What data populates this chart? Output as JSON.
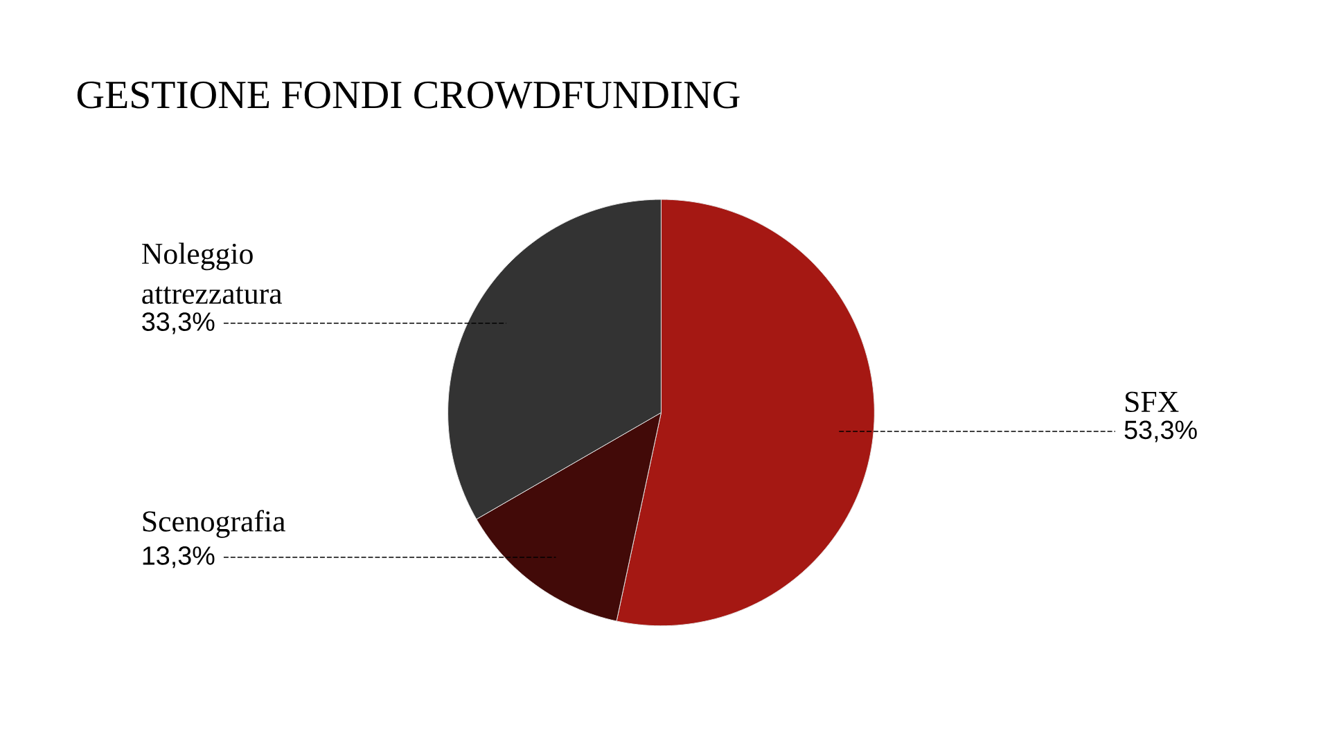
{
  "chart_data": {
    "type": "pie",
    "title": "GESTIONE FONDI CROWDFUNDING",
    "categories": [
      "SFX",
      "Scenografia",
      "Noleggio attrezzatura"
    ],
    "values": [
      53.3,
      13.3,
      33.3
    ],
    "value_labels": [
      "53,3%",
      "13,3%",
      "33,3%"
    ],
    "colors": [
      "#a51813",
      "#420a08",
      "#333333"
    ]
  }
}
